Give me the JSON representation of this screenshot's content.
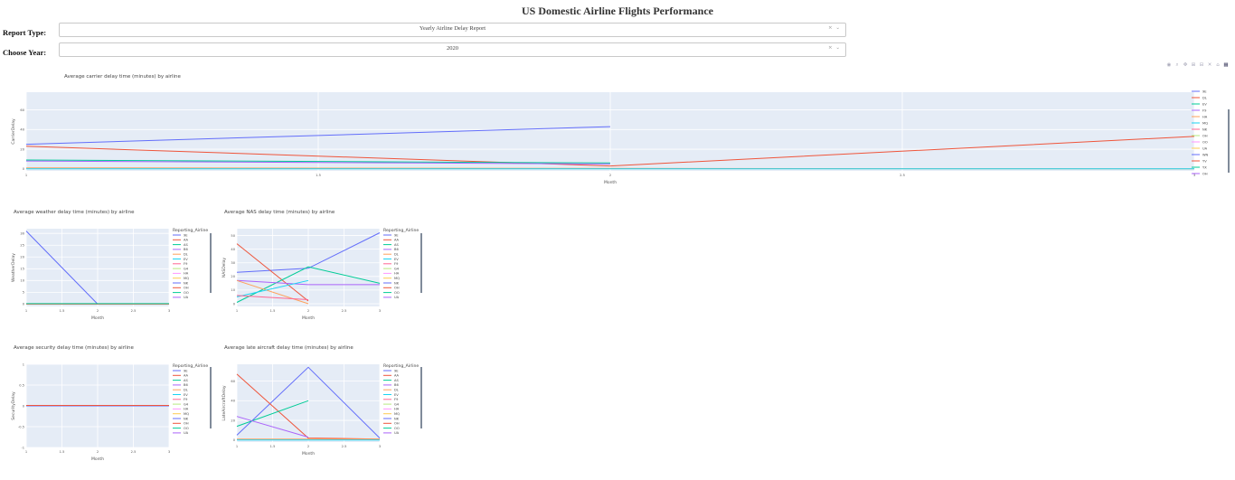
{
  "page": {
    "title": "US Domestic Airline Flights Performance"
  },
  "controls": {
    "report_type": {
      "label": "Report Type:",
      "value": "Yearly Airline Delay Report"
    },
    "year": {
      "label": "Choose Year:",
      "value": "2020"
    }
  },
  "modebar": {
    "icons": [
      "camera-icon",
      "zoom-icon",
      "pan-icon",
      "zoom-in-icon",
      "zoom-out-icon",
      "autoscale-icon",
      "reset-axes-icon",
      "plotly-logo-icon"
    ]
  },
  "airlines": [
    "9E",
    "AA",
    "AS",
    "B6",
    "DL",
    "EV",
    "F9",
    "G4",
    "HA",
    "MQ",
    "NK",
    "OH",
    "OO",
    "UA",
    "WN",
    "YV",
    "YX"
  ],
  "colors": [
    "#636efa",
    "#EF553B",
    "#00cc96",
    "#ab63fa",
    "#FFA15A",
    "#19d3f3",
    "#FF6692",
    "#B6E880",
    "#FF97FF",
    "#FECB52",
    "#636efa",
    "#EF553B",
    "#00cc96",
    "#ab63fa",
    "#FFA15A",
    "#19d3f3",
    "#FF6692"
  ],
  "chart_data": [
    {
      "type": "line",
      "title": "Average carrier delay time (minutes) by airline",
      "xlabel": "Month",
      "ylabel": "CarrierDelay",
      "x_ticks": [
        1,
        1.5,
        2,
        2.5,
        3
      ],
      "y_ticks": [
        0,
        20,
        40,
        60
      ],
      "xlim": [
        1,
        3
      ],
      "ylim": [
        -2,
        78
      ],
      "legend_title": "",
      "legend": [
        "9E",
        "DL",
        "EV",
        "F9",
        "HA",
        "MQ",
        "NK",
        "OH",
        "OO",
        "UA",
        "WN",
        "YV",
        "YX",
        "OH"
      ],
      "series": [
        {
          "x": [
            1,
            2
          ],
          "y": [
            25,
            43
          ]
        },
        {
          "x": [
            1,
            2,
            3
          ],
          "y": [
            23,
            3,
            33
          ]
        },
        {
          "x": [
            1,
            2
          ],
          "y": [
            9,
            6
          ]
        },
        {
          "x": [
            1,
            2
          ],
          "y": [
            8,
            5
          ]
        },
        {
          "x": [
            1,
            2,
            3
          ],
          "y": [
            1,
            0.5,
            0
          ]
        },
        {
          "x": [
            1,
            2,
            3
          ],
          "y": [
            0,
            0,
            0
          ]
        }
      ]
    },
    {
      "type": "line",
      "title": "Average weather delay time (minutes) by airline",
      "xlabel": "Month",
      "ylabel": "WeatherDelay",
      "x_ticks": [
        1,
        1.5,
        2,
        2.5,
        3
      ],
      "y_ticks": [
        0,
        5,
        10,
        15,
        20,
        25,
        30
      ],
      "xlim": [
        1,
        3
      ],
      "ylim": [
        -1,
        32
      ],
      "legend_title": "Reporting_Airline",
      "legend": [
        "9E",
        "AA",
        "AS",
        "B6",
        "DL",
        "EV",
        "F9",
        "G4",
        "HA",
        "MQ",
        "NK",
        "OH",
        "OO",
        "UA"
      ],
      "series": [
        {
          "x": [
            1,
            2
          ],
          "y": [
            31,
            0
          ]
        },
        {
          "x": [
            1,
            2,
            3
          ],
          "y": [
            0,
            0,
            0
          ]
        },
        {
          "x": [
            1,
            2,
            3
          ],
          "y": [
            0.2,
            0.2,
            0.2
          ]
        }
      ]
    },
    {
      "type": "line",
      "title": "Average NAS delay time (minutes) by airline",
      "xlabel": "Month",
      "ylabel": "NASDelay",
      "x_ticks": [
        1,
        1.5,
        2,
        2.5,
        3
      ],
      "y_ticks": [
        0,
        10,
        20,
        30,
        40,
        50
      ],
      "xlim": [
        1,
        3
      ],
      "ylim": [
        -2,
        55
      ],
      "legend_title": "Reporting_Airline",
      "legend": [
        "9E",
        "AA",
        "AS",
        "B6",
        "DL",
        "EV",
        "F9",
        "G4",
        "HA",
        "MQ",
        "NK",
        "OH",
        "OO",
        "UA"
      ],
      "series": [
        {
          "x": [
            1,
            2,
            3
          ],
          "y": [
            23,
            26,
            52
          ]
        },
        {
          "x": [
            1,
            2
          ],
          "y": [
            44,
            2
          ]
        },
        {
          "x": [
            1,
            2,
            3
          ],
          "y": [
            1,
            27,
            15
          ]
        },
        {
          "x": [
            1,
            2,
            3
          ],
          "y": [
            17,
            14,
            14
          ]
        },
        {
          "x": [
            1,
            2
          ],
          "y": [
            17,
            0
          ]
        },
        {
          "x": [
            1,
            2
          ],
          "y": [
            5,
            17
          ]
        },
        {
          "x": [
            1,
            2
          ],
          "y": [
            6,
            3
          ]
        }
      ]
    },
    {
      "type": "line",
      "title": "Average security delay time (minutes) by airline",
      "xlabel": "Month",
      "ylabel": "SecurityDelay",
      "x_ticks": [
        1,
        1.5,
        2,
        2.5,
        3
      ],
      "y_ticks": [
        -1,
        -0.5,
        0,
        0.5,
        1
      ],
      "xlim": [
        1,
        3
      ],
      "ylim": [
        -1,
        1
      ],
      "legend_title": "Reporting_Airline",
      "legend": [
        "9E",
        "AA",
        "AS",
        "B6",
        "DL",
        "EV",
        "F9",
        "G4",
        "HA",
        "MQ",
        "NK",
        "OH",
        "OO",
        "UA"
      ],
      "series": [
        {
          "x": [
            1,
            2,
            3
          ],
          "y": [
            0,
            0,
            0
          ]
        },
        {
          "x": [
            1,
            2,
            3
          ],
          "y": [
            0.01,
            0.01,
            0.01
          ]
        }
      ]
    },
    {
      "type": "line",
      "title": "Average late aircraft delay time (minutes) by airline",
      "xlabel": "Month",
      "ylabel": "LateAircraftDelay",
      "x_ticks": [
        1,
        1.5,
        2,
        2.5,
        3
      ],
      "y_ticks": [
        0,
        20,
        40,
        60
      ],
      "xlim": [
        1,
        3
      ],
      "ylim": [
        -2,
        77
      ],
      "legend_title": "Reporting_Airline",
      "legend": [
        "9E",
        "AA",
        "AS",
        "B6",
        "DL",
        "EV",
        "F9",
        "G4",
        "HA",
        "MQ",
        "NK",
        "OH",
        "OO",
        "UA"
      ],
      "series": [
        {
          "x": [
            1,
            2,
            3
          ],
          "y": [
            5,
            74,
            2
          ]
        },
        {
          "x": [
            1,
            2,
            3
          ],
          "y": [
            67,
            2,
            1
          ]
        },
        {
          "x": [
            1,
            2
          ],
          "y": [
            14,
            40
          ]
        },
        {
          "x": [
            1,
            2
          ],
          "y": [
            24,
            3
          ]
        },
        {
          "x": [
            1,
            2,
            3
          ],
          "y": [
            1,
            1,
            1
          ]
        },
        {
          "x": [
            1,
            2,
            3
          ],
          "y": [
            0,
            0,
            0
          ]
        }
      ]
    }
  ]
}
